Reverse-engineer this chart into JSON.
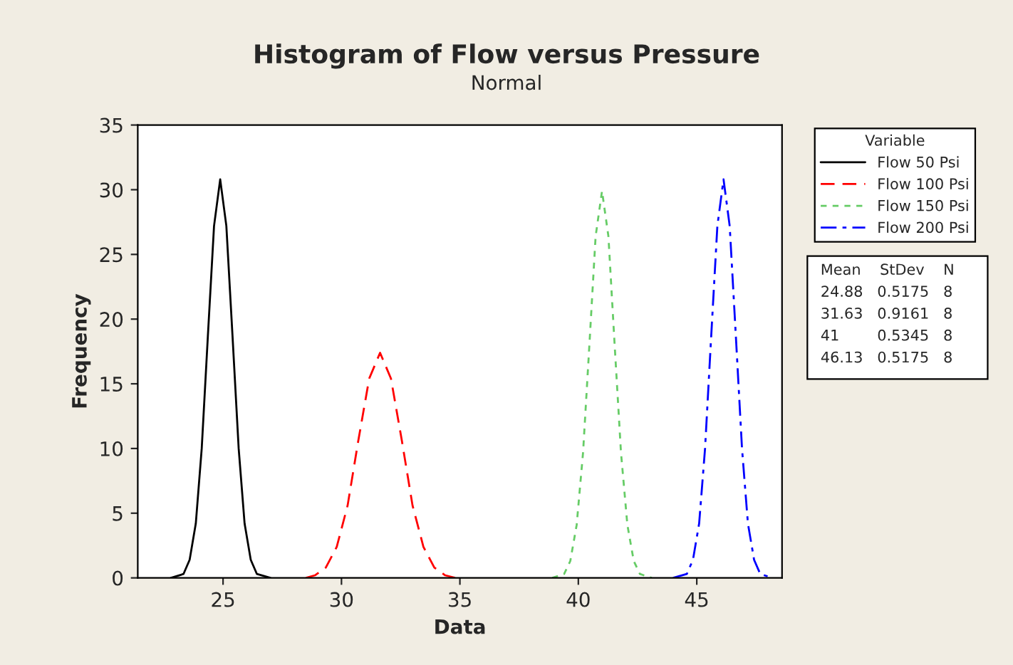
{
  "chart_data": {
    "type": "line",
    "title": "Histogram of Flow versus Pressure",
    "subtitle": "Normal",
    "xlabel": "Data",
    "ylabel": "Frequency",
    "legend_title": "Variable",
    "legend": "top right",
    "grid": false,
    "xlim": [
      21.4,
      48.6
    ],
    "xticks": [
      25,
      30,
      35,
      40,
      45
    ],
    "ylim": [
      0,
      35
    ],
    "yticks": [
      0,
      5,
      10,
      15,
      20,
      25,
      30,
      35
    ],
    "series": [
      {
        "name": "Flow 50 Psi",
        "color": "#000000",
        "line_style": "solid",
        "x": [
          22.8,
          23.33,
          23.59,
          23.85,
          24.1,
          24.36,
          24.62,
          24.88,
          25.14,
          25.4,
          25.66,
          25.91,
          26.17,
          26.43,
          27.0
        ],
        "values": [
          0,
          0.3,
          1.4,
          4.2,
          10.0,
          18.7,
          27.2,
          30.8,
          27.2,
          18.7,
          10.0,
          4.2,
          1.4,
          0.3,
          0
        ]
      },
      {
        "name": "Flow 100 Psi",
        "color": "#ff0000",
        "line_style": "dashed",
        "x": [
          28.5,
          28.88,
          29.34,
          29.8,
          30.26,
          30.71,
          31.17,
          31.63,
          32.09,
          32.55,
          33.0,
          33.46,
          33.92,
          34.38,
          34.8
        ],
        "values": [
          0,
          0.2,
          0.8,
          2.4,
          5.6,
          10.6,
          15.4,
          17.4,
          15.4,
          10.6,
          5.6,
          2.4,
          0.8,
          0.2,
          0
        ]
      },
      {
        "name": "Flow 150 Psi",
        "color": "#66cc66",
        "line_style": "dotted",
        "x": [
          38.9,
          39.4,
          39.66,
          39.93,
          40.2,
          40.47,
          40.73,
          41.0,
          41.27,
          41.53,
          41.8,
          42.07,
          42.34,
          42.6,
          43.1
        ],
        "values": [
          0,
          0.3,
          1.3,
          4.1,
          9.7,
          18.1,
          26.4,
          29.9,
          26.4,
          18.1,
          9.7,
          4.1,
          1.3,
          0.3,
          0
        ]
      },
      {
        "name": "Flow 200 Psi",
        "color": "#0000ff",
        "line_style": "dashdot",
        "x": [
          44.0,
          44.58,
          44.84,
          45.1,
          45.35,
          45.61,
          45.87,
          46.13,
          46.39,
          46.65,
          46.91,
          47.16,
          47.42,
          47.68,
          48.2
        ],
        "values": [
          0,
          0.3,
          1.4,
          4.2,
          10.0,
          18.7,
          27.2,
          30.8,
          27.2,
          18.7,
          10.0,
          4.2,
          1.4,
          0.3,
          0
        ]
      }
    ],
    "annotations": [
      "Mean    StDev    N",
      "24.88   0.5175   8",
      "31.63   0.9161   8",
      "41        0.5345   8",
      "46.13   0.5175   8"
    ]
  }
}
